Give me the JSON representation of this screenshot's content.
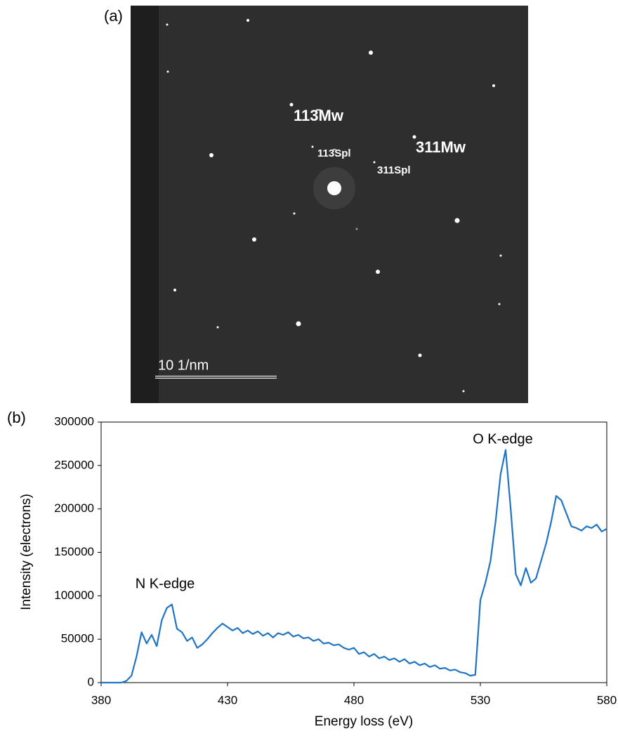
{
  "panel_a": {
    "label": "(a)",
    "annotations": [
      "113̄Mw",
      "113̄Spl",
      "311Mw",
      "311Spl"
    ],
    "scale_bar": "10 1/nm"
  },
  "chart_data": {
    "type": "line",
    "label": "(b)",
    "xlabel": "Energy loss (eV)",
    "ylabel": "Intensity (electrons)",
    "annotations": [
      "N K-edge",
      "O K-edge"
    ],
    "color": "#1f74c4",
    "xlim": [
      380,
      580
    ],
    "xticks": [
      380,
      430,
      480,
      530,
      580
    ],
    "ylim": [
      0,
      300000
    ],
    "yticks": [
      0,
      50000,
      100000,
      150000,
      200000,
      250000,
      300000
    ],
    "grid": false,
    "x": [
      380,
      382,
      384,
      386,
      388,
      390,
      392,
      394,
      396,
      398,
      400,
      402,
      404,
      406,
      408,
      410,
      412,
      414,
      416,
      418,
      420,
      422,
      424,
      426,
      428,
      430,
      432,
      434,
      436,
      438,
      440,
      442,
      444,
      446,
      448,
      450,
      452,
      454,
      456,
      458,
      460,
      462,
      464,
      466,
      468,
      470,
      472,
      474,
      476,
      478,
      480,
      482,
      484,
      486,
      488,
      490,
      492,
      494,
      496,
      498,
      500,
      502,
      504,
      506,
      508,
      510,
      512,
      514,
      516,
      518,
      520,
      522,
      524,
      526,
      528,
      530,
      532,
      534,
      536,
      538,
      540,
      542,
      544,
      546,
      548,
      550,
      552,
      554,
      556,
      558,
      560,
      562,
      564,
      566,
      568,
      570,
      572,
      574,
      576,
      578,
      580
    ],
    "values": [
      0,
      0,
      0,
      0,
      0,
      2000,
      8000,
      30000,
      58000,
      45000,
      55000,
      42000,
      72000,
      86000,
      90000,
      62000,
      58000,
      48000,
      52000,
      40000,
      44000,
      50000,
      57000,
      63000,
      68000,
      64000,
      60000,
      63000,
      57000,
      60000,
      56000,
      59000,
      54000,
      57000,
      52000,
      57000,
      55000,
      58000,
      53000,
      55000,
      51000,
      52000,
      48000,
      50000,
      45000,
      46000,
      43000,
      44000,
      40000,
      38000,
      40000,
      33000,
      35000,
      30000,
      33000,
      28000,
      30000,
      26000,
      28000,
      24000,
      27000,
      22000,
      24000,
      20000,
      22000,
      18000,
      20000,
      16000,
      17000,
      14000,
      15000,
      12000,
      11000,
      8000,
      9000,
      95000,
      115000,
      140000,
      185000,
      240000,
      268000,
      200000,
      125000,
      112000,
      132000,
      115000,
      120000,
      140000,
      160000,
      185000,
      215000,
      210000,
      195000,
      180000,
      178000,
      175000,
      180000,
      178000,
      182000,
      174000,
      177000
    ]
  }
}
